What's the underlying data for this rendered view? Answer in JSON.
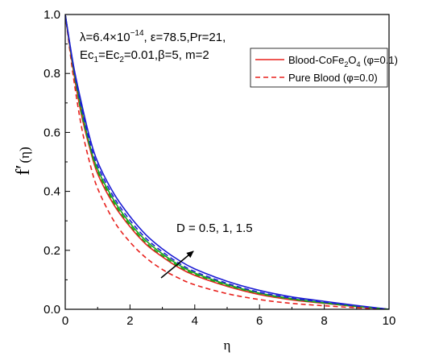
{
  "chart_data": {
    "type": "line",
    "xlabel": "η",
    "ylabel_main": "f",
    "ylabel_prime": "′",
    "ylabel_arg": "(η)",
    "xlim": [
      0,
      10
    ],
    "ylim": [
      0,
      1
    ],
    "xticks": [
      "0",
      "2",
      "4",
      "6",
      "8",
      "10"
    ],
    "yticks": [
      "0.0",
      "0.2",
      "0.4",
      "0.6",
      "0.8",
      "1.0"
    ],
    "grid": false,
    "legend_position": "top-right",
    "legend": [
      {
        "label_pre": "Blood-CoFe",
        "label_sub": "2",
        "label_mid": "O",
        "label_sub2": "4",
        "label_post": " (φ=0.1)",
        "style": "solid",
        "color": "#e8201c"
      },
      {
        "label": "Pure Blood (φ=0.0)",
        "style": "dashed",
        "color": "#e8201c"
      }
    ],
    "params": {
      "line1_pre": "λ=6.4×10",
      "line1_sup": "−14",
      "line1_post": ", ε=78.5,Pr=21,",
      "line2_a": "Ec",
      "line2_s1": "1",
      "line2_b": "=Ec",
      "line2_s2": "2",
      "line2_c": "=0.01,β=5,  m=2"
    },
    "arrow_label": "D = 0.5, 1, 1.5",
    "series": [
      {
        "style": "solid",
        "color": "#e8201c",
        "x": [
          0,
          0.25,
          0.5,
          0.75,
          1,
          1.5,
          2,
          2.5,
          3,
          3.5,
          4,
          5,
          6,
          7,
          8,
          9,
          10
        ],
        "values": [
          1.0,
          0.81,
          0.66,
          0.55,
          0.46,
          0.355,
          0.28,
          0.22,
          0.178,
          0.142,
          0.115,
          0.078,
          0.05,
          0.032,
          0.02,
          0.009,
          0.0
        ]
      },
      {
        "style": "solid",
        "color": "#1aa51a",
        "x": [
          0,
          0.25,
          0.5,
          0.75,
          1,
          1.5,
          2,
          2.5,
          3,
          3.5,
          4,
          5,
          6,
          7,
          8,
          9,
          10
        ],
        "values": [
          1.0,
          0.82,
          0.68,
          0.56,
          0.475,
          0.37,
          0.292,
          0.232,
          0.188,
          0.151,
          0.123,
          0.084,
          0.055,
          0.036,
          0.022,
          0.01,
          0.0
        ]
      },
      {
        "style": "solid",
        "color": "#1c1cd4",
        "x": [
          0,
          0.25,
          0.5,
          0.75,
          1,
          1.5,
          2,
          2.5,
          3,
          3.5,
          4,
          5,
          6,
          7,
          8,
          9,
          10
        ],
        "values": [
          1.0,
          0.83,
          0.7,
          0.585,
          0.5,
          0.393,
          0.315,
          0.252,
          0.205,
          0.167,
          0.137,
          0.095,
          0.064,
          0.042,
          0.027,
          0.013,
          0.0
        ]
      },
      {
        "style": "dashed",
        "color": "#e8201c",
        "x": [
          0,
          0.25,
          0.5,
          0.75,
          1,
          1.5,
          2,
          2.5,
          3,
          3.5,
          4,
          5,
          6,
          7,
          8,
          9,
          10
        ],
        "values": [
          1.0,
          0.79,
          0.62,
          0.5,
          0.41,
          0.3,
          0.228,
          0.174,
          0.135,
          0.106,
          0.083,
          0.053,
          0.033,
          0.02,
          0.012,
          0.005,
          0.0
        ]
      },
      {
        "style": "dashed",
        "color": "#1aa51a",
        "x": [
          0,
          0.25,
          0.5,
          0.75,
          1,
          1.5,
          2,
          2.5,
          3,
          3.5,
          4,
          5,
          6,
          7,
          8,
          9,
          10
        ],
        "values": [
          1.0,
          0.815,
          0.665,
          0.555,
          0.468,
          0.362,
          0.285,
          0.225,
          0.182,
          0.146,
          0.119,
          0.081,
          0.053,
          0.034,
          0.021,
          0.0095,
          0.0
        ]
      },
      {
        "style": "dashed",
        "color": "#1c1cd4",
        "x": [
          0,
          0.25,
          0.5,
          0.75,
          1,
          1.5,
          2,
          2.5,
          3,
          3.5,
          4,
          5,
          6,
          7,
          8,
          9,
          10
        ],
        "values": [
          1.0,
          0.825,
          0.685,
          0.57,
          0.487,
          0.38,
          0.302,
          0.24,
          0.195,
          0.157,
          0.128,
          0.088,
          0.058,
          0.038,
          0.024,
          0.011,
          0.0
        ]
      }
    ]
  }
}
